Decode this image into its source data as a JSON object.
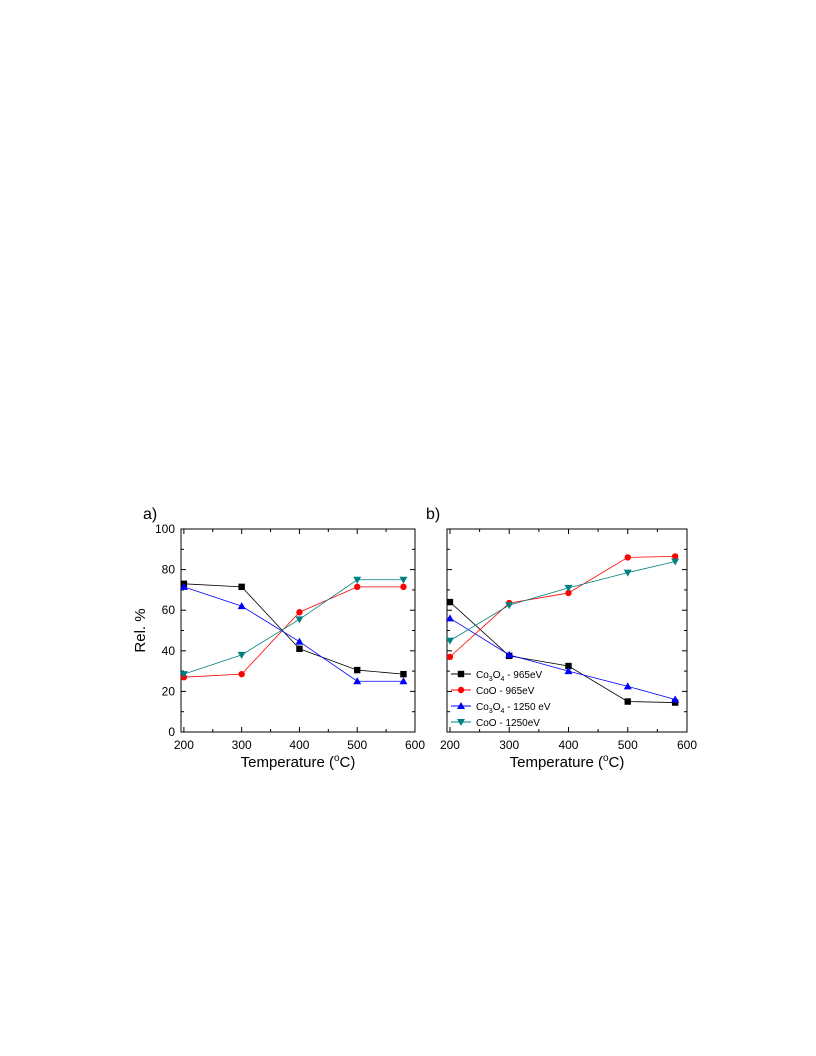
{
  "figure": {
    "colors": {
      "co3o4_965": "#000000",
      "coo_965": "#ff0000",
      "co3o4_1250": "#0000ff",
      "coo_1250": "#008080"
    }
  },
  "chart_data": [
    {
      "panel": "a)",
      "type": "line",
      "xlabel": "Temperature (°C)",
      "ylabel": "Rel. %",
      "xlim": [
        195,
        600
      ],
      "ylim": [
        0,
        100
      ],
      "xticks": [
        200,
        300,
        400,
        500,
        600
      ],
      "yticks": [
        0,
        20,
        40,
        60,
        80,
        100
      ],
      "grid": false,
      "legend": null,
      "series": [
        {
          "key": "co3o4_965",
          "marker": "square",
          "x": [
            200,
            300,
            400,
            500,
            580
          ],
          "values": [
            73,
            71.5,
            41,
            30.5,
            28.5
          ]
        },
        {
          "key": "coo_965",
          "marker": "circle",
          "x": [
            200,
            300,
            400,
            500,
            580
          ],
          "values": [
            27,
            28.5,
            59,
            71.5,
            71.5
          ]
        },
        {
          "key": "co3o4_1250",
          "marker": "triangle-up",
          "x": [
            200,
            300,
            400,
            500,
            580
          ],
          "values": [
            71.5,
            62,
            44.5,
            25,
            25
          ]
        },
        {
          "key": "coo_1250",
          "marker": "triangle-down",
          "x": [
            200,
            300,
            400,
            500,
            580
          ],
          "values": [
            28.5,
            38,
            55.5,
            75,
            75
          ]
        }
      ]
    },
    {
      "panel": "b)",
      "type": "line",
      "xlabel": "Temperature (°C)",
      "ylabel": "",
      "xlim": [
        195,
        600
      ],
      "ylim": [
        0,
        100
      ],
      "xticks": [
        200,
        300,
        400,
        500,
        600
      ],
      "yticks": [
        0,
        20,
        40,
        60,
        80,
        100
      ],
      "grid": false,
      "legend": "bottom-left",
      "series": [
        {
          "key": "co3o4_965",
          "name_main": "Co",
          "name_sub1": "3",
          "name_mid": "O",
          "name_sub2": "4",
          "name_tail": " - 965eV",
          "marker": "square",
          "x": [
            200,
            300,
            400,
            500,
            580
          ],
          "values": [
            64,
            37.5,
            32.5,
            15,
            14.5
          ]
        },
        {
          "key": "coo_965",
          "name_main": "CoO - 965eV",
          "marker": "circle",
          "x": [
            200,
            300,
            400,
            500,
            580
          ],
          "values": [
            37,
            63.5,
            68.5,
            86,
            86.5
          ]
        },
        {
          "key": "co3o4_1250",
          "name_main": "Co",
          "name_sub1": "3",
          "name_mid": "O",
          "name_sub2": "4",
          "name_tail": " - 1250 eV",
          "marker": "triangle-up",
          "x": [
            200,
            300,
            400,
            500,
            580
          ],
          "values": [
            56,
            38,
            30,
            22.5,
            16
          ]
        },
        {
          "key": "coo_1250",
          "name_main": "CoO - 1250eV",
          "marker": "triangle-down",
          "x": [
            200,
            300,
            400,
            500,
            580
          ],
          "values": [
            45,
            62.5,
            71,
            78.5,
            84
          ]
        }
      ]
    }
  ],
  "text": {
    "xlabel_a_pre": "Temperature (",
    "xlabel_a_sup": "o",
    "xlabel_a_post": "C)",
    "xlabel_b_pre": "Temperature (",
    "xlabel_b_sup": "o",
    "xlabel_b_post": "C)",
    "ylabel_a": "Rel. %"
  }
}
